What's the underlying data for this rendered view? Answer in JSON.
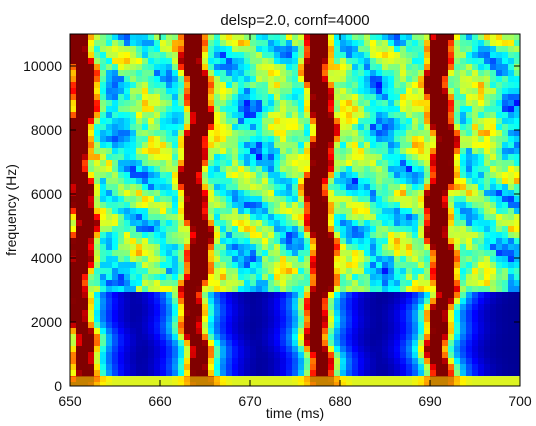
{
  "chart_data": {
    "type": "heatmap",
    "title": "delsp=2.0, cornf=4000",
    "xlabel": "time (ms)",
    "ylabel": "frequency (Hz)",
    "xlim": [
      650,
      700
    ],
    "ylim": [
      0,
      11000
    ],
    "x_ticks": [
      "650",
      "660",
      "670",
      "680",
      "690",
      "700"
    ],
    "y_ticks": [
      "0",
      "2000",
      "4000",
      "6000",
      "8000",
      "10000"
    ],
    "colormap": "jet",
    "colors": {
      "low": "#00007f",
      "mid": "#00ffff",
      "high": "#7f0000"
    },
    "bands": [
      {
        "center_ms": 651.2,
        "width_ms": 2.5
      },
      {
        "center_ms": 664.0,
        "width_ms": 2.5
      },
      {
        "center_ms": 677.8,
        "width_ms": 2.5
      },
      {
        "center_ms": 691.2,
        "width_ms": 2.5
      }
    ],
    "cutoff_hz": 2900,
    "floor_hz": 300,
    "grid": false,
    "legend": false
  }
}
